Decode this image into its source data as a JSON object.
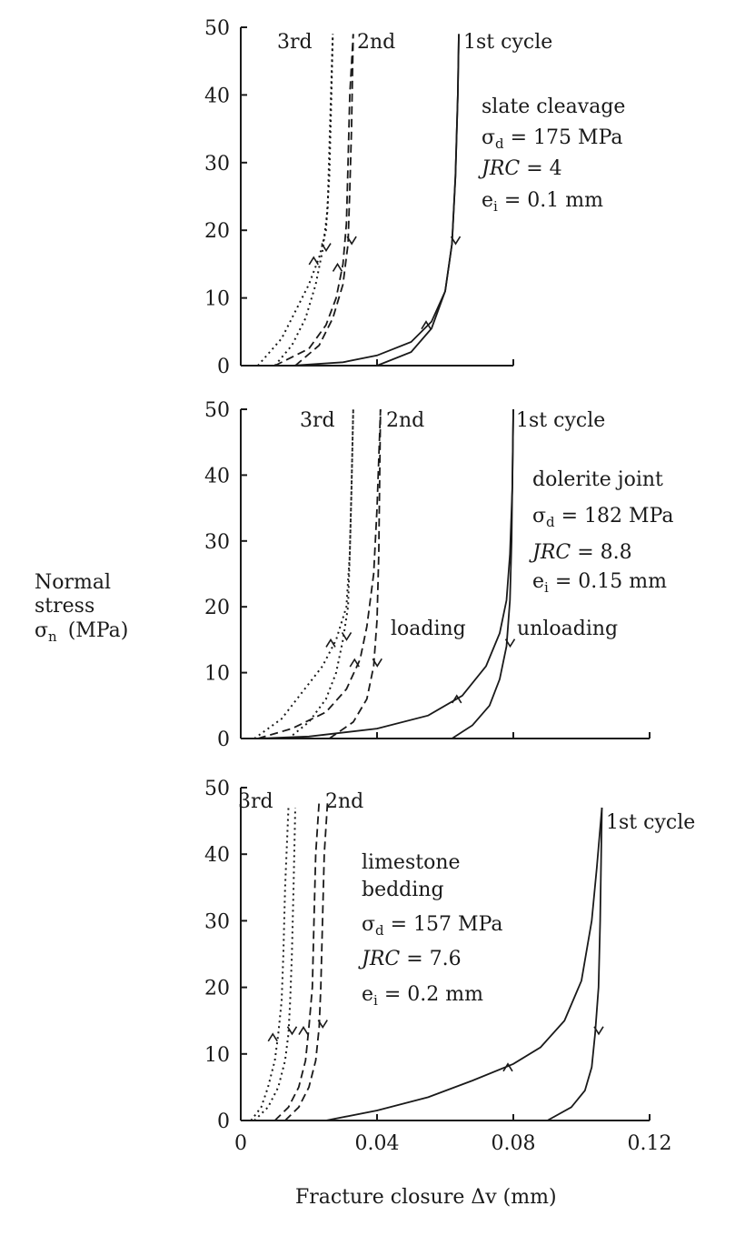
{
  "y_axis_title": {
    "line1": "Normal",
    "line2": "stress",
    "line3_symbol": "σ",
    "line3_sub": "n",
    "line3_unit": "(MPa)"
  },
  "x_axis_title": "Fracture closure  Δv  (mm)",
  "chart_data": [
    {
      "type": "line",
      "panel": "slate",
      "labels": [
        "slate cleavage",
        "σd = 175 MPa",
        "JRC = 4",
        "ei = 0.1 mm"
      ],
      "cycle_labels": [
        "3rd",
        "2nd",
        "1st cycle"
      ],
      "ylim": [
        0,
        50
      ],
      "xlim": [
        0,
        0.08
      ],
      "yticks": [
        "0",
        "10",
        "20",
        "30",
        "40",
        "50"
      ],
      "series": [
        {
          "name": "1st cycle",
          "style": "solid",
          "loading": [
            [
              0.015,
              0
            ],
            [
              0.03,
              0.5
            ],
            [
              0.04,
              1.5
            ],
            [
              0.05,
              3.5
            ],
            [
              0.056,
              6.5
            ],
            [
              0.06,
              11
            ],
            [
              0.062,
              18
            ],
            [
              0.063,
              28
            ],
            [
              0.0637,
              40
            ],
            [
              0.064,
              49
            ]
          ],
          "unloading": [
            [
              0.04,
              0
            ],
            [
              0.05,
              2
            ],
            [
              0.056,
              5.5
            ],
            [
              0.06,
              11
            ],
            [
              0.062,
              18
            ],
            [
              0.063,
              28
            ],
            [
              0.0637,
              40
            ],
            [
              0.064,
              49
            ]
          ]
        },
        {
          "name": "2nd",
          "style": "dashed",
          "loading": [
            [
              0.01,
              0
            ],
            [
              0.02,
              2.5
            ],
            [
              0.025,
              6
            ],
            [
              0.028,
              10
            ],
            [
              0.03,
              15
            ],
            [
              0.031,
              21
            ],
            [
              0.0315,
              30
            ],
            [
              0.032,
              40
            ],
            [
              0.033,
              49
            ]
          ],
          "unloading": [
            [
              0.016,
              0
            ],
            [
              0.023,
              3
            ],
            [
              0.027,
              7
            ],
            [
              0.03,
              12
            ],
            [
              0.0315,
              18
            ],
            [
              0.032,
              26
            ],
            [
              0.0325,
              35
            ],
            [
              0.033,
              49
            ]
          ]
        },
        {
          "name": "3rd",
          "style": "dotted",
          "loading": [
            [
              0.005,
              0
            ],
            [
              0.012,
              4
            ],
            [
              0.016,
              8
            ],
            [
              0.02,
              12
            ],
            [
              0.023,
              16
            ],
            [
              0.025,
              20
            ],
            [
              0.026,
              28
            ],
            [
              0.0265,
              38
            ],
            [
              0.027,
              49
            ]
          ],
          "unloading": [
            [
              0.01,
              0
            ],
            [
              0.015,
              3
            ],
            [
              0.019,
              7
            ],
            [
              0.022,
              12
            ],
            [
              0.024,
              17
            ],
            [
              0.0255,
              23
            ],
            [
              0.026,
              32
            ],
            [
              0.027,
              49
            ]
          ]
        }
      ]
    },
    {
      "type": "line",
      "panel": "dolerite",
      "labels": [
        "dolerite joint",
        "σd = 182 MPa",
        "JRC = 8.8",
        "ei = 0.15 mm"
      ],
      "cycle_labels": [
        "3rd",
        "2nd",
        "1st cycle",
        "loading",
        "unloading"
      ],
      "ylim": [
        0,
        50
      ],
      "xlim": [
        0,
        0.12
      ],
      "yticks": [
        "0",
        "10",
        "20",
        "30",
        "40",
        "50"
      ],
      "series": [
        {
          "name": "1st cycle",
          "style": "solid",
          "loading": [
            [
              0.005,
              0
            ],
            [
              0.02,
              0.3
            ],
            [
              0.04,
              1.5
            ],
            [
              0.055,
              3.5
            ],
            [
              0.065,
              6.5
            ],
            [
              0.072,
              11
            ],
            [
              0.076,
              16
            ],
            [
              0.078,
              21
            ],
            [
              0.079,
              28
            ],
            [
              0.0797,
              38
            ],
            [
              0.08,
              50
            ]
          ],
          "unloading": [
            [
              0.062,
              0
            ],
            [
              0.068,
              2
            ],
            [
              0.073,
              5
            ],
            [
              0.076,
              9
            ],
            [
              0.078,
              14
            ],
            [
              0.079,
              21
            ],
            [
              0.0795,
              30
            ],
            [
              0.08,
              50
            ]
          ]
        },
        {
          "name": "2nd",
          "style": "dashed",
          "loading": [
            [
              0.005,
              0
            ],
            [
              0.015,
              1.5
            ],
            [
              0.025,
              4
            ],
            [
              0.031,
              7.5
            ],
            [
              0.035,
              12
            ],
            [
              0.037,
              17
            ],
            [
              0.039,
              25
            ],
            [
              0.04,
              35
            ],
            [
              0.041,
              50
            ]
          ],
          "unloading": [
            [
              0.026,
              0
            ],
            [
              0.033,
              2.5
            ],
            [
              0.037,
              6
            ],
            [
              0.039,
              11
            ],
            [
              0.04,
              18
            ],
            [
              0.0405,
              28
            ],
            [
              0.041,
              50
            ]
          ]
        },
        {
          "name": "3rd",
          "style": "dotted",
          "loading": [
            [
              0.004,
              0
            ],
            [
              0.012,
              3
            ],
            [
              0.018,
              7
            ],
            [
              0.024,
              11
            ],
            [
              0.028,
              15
            ],
            [
              0.031,
              20
            ],
            [
              0.032,
              28
            ],
            [
              0.0325,
              38
            ],
            [
              0.033,
              50
            ]
          ],
          "unloading": [
            [
              0.014,
              0
            ],
            [
              0.02,
              2.5
            ],
            [
              0.025,
              6
            ],
            [
              0.028,
              10
            ],
            [
              0.03,
              15
            ],
            [
              0.0315,
              20
            ],
            [
              0.032,
              28
            ],
            [
              0.0325,
              38
            ],
            [
              0.033,
              50
            ]
          ]
        }
      ]
    },
    {
      "type": "line",
      "panel": "limestone",
      "labels": [
        "limestone",
        "bedding",
        "σd = 157 MPa",
        "JRC = 7.6",
        "ei = 0.2 mm"
      ],
      "cycle_labels": [
        "3rd",
        "2nd",
        "1st cycle"
      ],
      "ylim": [
        0,
        50
      ],
      "xlim": [
        0,
        0.12
      ],
      "yticks": [
        "0",
        "10",
        "20",
        "30",
        "40",
        "50"
      ],
      "xticks": [
        "0",
        "0.04",
        "0.08",
        "0.12"
      ],
      "series": [
        {
          "name": "1st cycle",
          "style": "solid",
          "loading": [
            [
              0.025,
              0
            ],
            [
              0.04,
              1.5
            ],
            [
              0.055,
              3.5
            ],
            [
              0.068,
              6
            ],
            [
              0.08,
              8.5
            ],
            [
              0.088,
              11
            ],
            [
              0.095,
              15
            ],
            [
              0.1,
              21
            ],
            [
              0.103,
              30
            ],
            [
              0.1045,
              38
            ],
            [
              0.106,
              47
            ]
          ],
          "unloading": [
            [
              0.09,
              0
            ],
            [
              0.097,
              2
            ],
            [
              0.101,
              4.5
            ],
            [
              0.103,
              8
            ],
            [
              0.104,
              13
            ],
            [
              0.105,
              20
            ],
            [
              0.1055,
              30
            ],
            [
              0.106,
              47
            ]
          ]
        },
        {
          "name": "2nd",
          "style": "dashed",
          "loading": [
            [
              0.01,
              0
            ],
            [
              0.014,
              2
            ],
            [
              0.017,
              5
            ],
            [
              0.019,
              9
            ],
            [
              0.02,
              14
            ],
            [
              0.021,
              20
            ],
            [
              0.0215,
              30
            ],
            [
              0.022,
              40
            ],
            [
              0.023,
              48
            ]
          ],
          "unloading": [
            [
              0.013,
              0
            ],
            [
              0.017,
              2
            ],
            [
              0.02,
              5
            ],
            [
              0.022,
              9
            ],
            [
              0.023,
              14
            ],
            [
              0.0235,
              20
            ],
            [
              0.024,
              30
            ],
            [
              0.0245,
              40
            ],
            [
              0.0255,
              48
            ]
          ]
        },
        {
          "name": "3rd",
          "style": "dotted",
          "loading": [
            [
              0.003,
              0
            ],
            [
              0.006,
              2
            ],
            [
              0.008,
              5
            ],
            [
              0.01,
              9
            ],
            [
              0.011,
              13
            ],
            [
              0.012,
              18
            ],
            [
              0.0125,
              25
            ],
            [
              0.013,
              35
            ],
            [
              0.014,
              47
            ]
          ],
          "unloading": [
            [
              0.004,
              0
            ],
            [
              0.008,
              2
            ],
            [
              0.011,
              5
            ],
            [
              0.013,
              9
            ],
            [
              0.014,
              13
            ],
            [
              0.0145,
              18
            ],
            [
              0.015,
              25
            ],
            [
              0.0155,
              35
            ],
            [
              0.016,
              47
            ]
          ]
        }
      ]
    }
  ]
}
